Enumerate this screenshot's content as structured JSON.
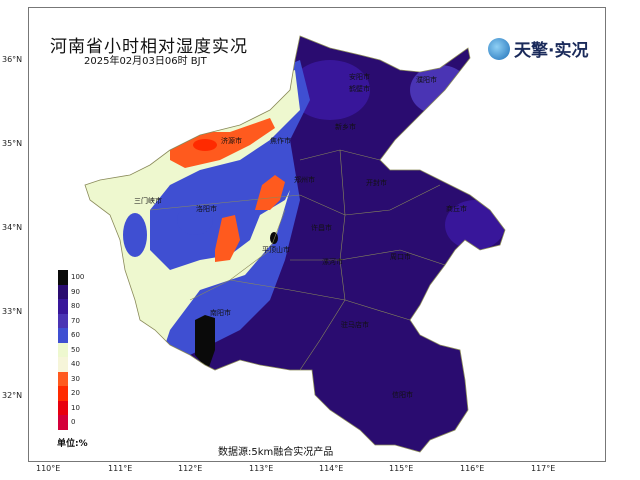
{
  "header": {
    "title": "河南省小时相对湿度实况",
    "subtitle": "2025年02月03日06时 BJT",
    "brand": "天擎·实况",
    "brand_icon": "globe-logo-icon"
  },
  "axes": {
    "lat": [
      "36°N",
      "35°N",
      "34°N",
      "33°N",
      "32°N"
    ],
    "lon": [
      "110°E",
      "111°E",
      "112°E",
      "113°E",
      "114°E",
      "115°E",
      "116°E",
      "117°E"
    ]
  },
  "cities": [
    "安阳市",
    "鹤壁市",
    "濮阳市",
    "新乡市",
    "焦作市",
    "济源市",
    "郑州市",
    "开封市",
    "商丘市",
    "三门峡市",
    "洛阳市",
    "许昌市",
    "平顶山市",
    "漯河市",
    "周口市",
    "南阳市",
    "驻马店市",
    "信阳市"
  ],
  "legend": {
    "labels": [
      "100",
      "90",
      "80",
      "70",
      "60",
      "50",
      "40",
      "30",
      "20",
      "10",
      "0"
    ],
    "colors": [
      "#0a0a0a",
      "#2a0c70",
      "#38169a",
      "#4a34b4",
      "#3f4fd2",
      "#eef8cf",
      "#f6f5d9",
      "#ff5a1e",
      "#ff2a00",
      "#e8000e",
      "#d4003a"
    ],
    "unit": "单位:%"
  },
  "footer": {
    "source": "数据源:5km融合实况产品"
  }
}
